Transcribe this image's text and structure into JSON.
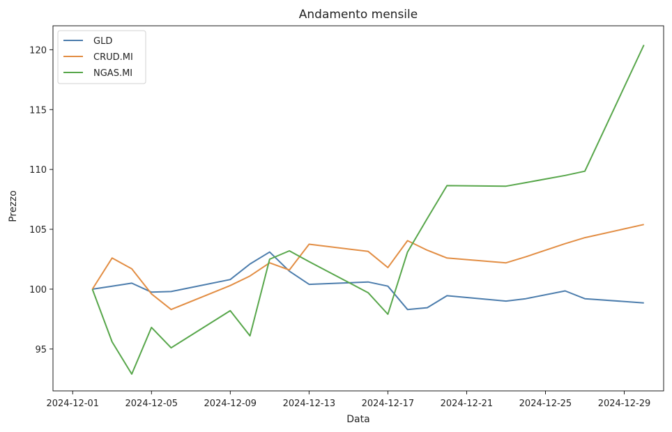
{
  "chart_data": {
    "type": "line",
    "title": "Andamento mensile",
    "xlabel": "Data",
    "ylabel": "Prezzo",
    "xlim": [
      "2024-11-30",
      "2024-12-31"
    ],
    "ylim": [
      91.5,
      122
    ],
    "xticks": [
      "2024-12-01",
      "2024-12-05",
      "2024-12-09",
      "2024-12-13",
      "2024-12-17",
      "2024-12-21",
      "2024-12-25",
      "2024-12-29"
    ],
    "yticks": [
      95,
      100,
      105,
      110,
      115,
      120
    ],
    "grid": false,
    "legend_position": "top-left",
    "x": [
      "2024-12-02",
      "2024-12-03",
      "2024-12-04",
      "2024-12-05",
      "2024-12-06",
      "2024-12-09",
      "2024-12-10",
      "2024-12-11",
      "2024-12-12",
      "2024-12-13",
      "2024-12-16",
      "2024-12-17",
      "2024-12-18",
      "2024-12-19",
      "2024-12-20",
      "2024-12-23",
      "2024-12-24",
      "2024-12-26",
      "2024-12-27",
      "2024-12-30"
    ],
    "series": [
      {
        "name": "GLD",
        "color": "#4b7cac",
        "values": [
          100.0,
          100.25,
          100.5,
          99.75,
          99.8,
          100.8,
          102.1,
          103.1,
          101.5,
          100.4,
          100.6,
          100.25,
          98.3,
          98.45,
          99.45,
          99.0,
          99.2,
          99.85,
          99.2,
          98.85
        ]
      },
      {
        "name": "CRUD.MI",
        "color": "#e28d43",
        "values": [
          100.0,
          102.6,
          101.7,
          99.6,
          98.3,
          100.3,
          101.1,
          102.2,
          101.6,
          103.75,
          103.15,
          101.8,
          104.05,
          103.25,
          102.6,
          102.2,
          102.7,
          103.8,
          104.3,
          105.4
        ]
      },
      {
        "name": "NGAS.MI",
        "color": "#57a64a",
        "values": [
          100.0,
          95.6,
          92.9,
          96.8,
          95.1,
          98.2,
          96.1,
          102.5,
          103.2,
          102.3,
          99.7,
          97.9,
          103.1,
          105.9,
          108.65,
          108.6,
          108.9,
          109.5,
          109.85,
          120.4
        ]
      }
    ]
  }
}
